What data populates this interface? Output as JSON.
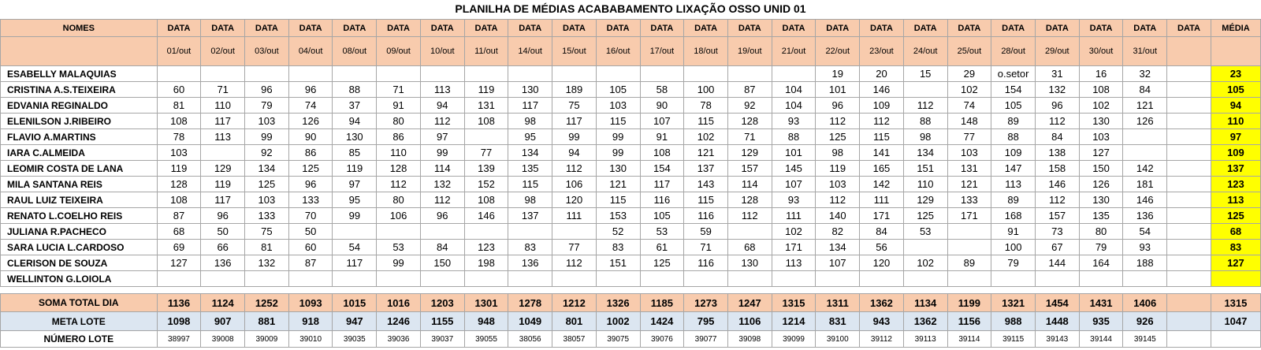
{
  "title": "PLANILHA DE MÉDIAS ACABABAMENTO LIXAÇÃO OSSO UNID 01",
  "header": {
    "nomes_label": "NOMES",
    "data_label": "DATA",
    "media_label": "MÉDIA",
    "dates": [
      "01/out",
      "02/out",
      "03/out",
      "04/out",
      "08/out",
      "09/out",
      "10/out",
      "11/out",
      "14/out",
      "15/out",
      "16/out",
      "17/out",
      "18/out",
      "19/out",
      "21/out",
      "22/out",
      "23/out",
      "24/out",
      "25/out",
      "28/out",
      "29/out",
      "30/out",
      "31/out",
      ""
    ]
  },
  "rows": [
    {
      "name": "ESABELLY MALAQUIAS",
      "values": [
        "",
        "",
        "",
        "",
        "",
        "",
        "",
        "",
        "",
        "",
        "",
        "",
        "",
        "",
        "",
        "19",
        "20",
        "15",
        "29",
        "o.setor",
        "31",
        "16",
        "32",
        ""
      ],
      "media": "23"
    },
    {
      "name": "CRISTINA A.S.TEIXEIRA",
      "values": [
        "60",
        "71",
        "96",
        "96",
        "88",
        "71",
        "113",
        "119",
        "130",
        "189",
        "105",
        "58",
        "100",
        "87",
        "104",
        "101",
        "146",
        "",
        "102",
        "154",
        "132",
        "108",
        "84",
        ""
      ],
      "media": "105"
    },
    {
      "name": "EDVANIA REGINALDO",
      "values": [
        "81",
        "110",
        "79",
        "74",
        "37",
        "91",
        "94",
        "131",
        "117",
        "75",
        "103",
        "90",
        "78",
        "92",
        "104",
        "96",
        "109",
        "112",
        "74",
        "105",
        "96",
        "102",
        "121",
        ""
      ],
      "media": "94"
    },
    {
      "name": "ELENILSON J.RIBEIRO",
      "values": [
        "108",
        "117",
        "103",
        "126",
        "94",
        "80",
        "112",
        "108",
        "98",
        "117",
        "115",
        "107",
        "115",
        "128",
        "93",
        "112",
        "112",
        "88",
        "148",
        "89",
        "112",
        "130",
        "126",
        ""
      ],
      "media": "110"
    },
    {
      "name": "FLAVIO A.MARTINS",
      "values": [
        "78",
        "113",
        "99",
        "90",
        "130",
        "86",
        "97",
        "",
        "95",
        "99",
        "99",
        "91",
        "102",
        "71",
        "88",
        "125",
        "115",
        "98",
        "77",
        "88",
        "84",
        "103",
        "",
        ""
      ],
      "media": "97"
    },
    {
      "name": "IARA C.ALMEIDA",
      "values": [
        "103",
        "",
        "92",
        "86",
        "85",
        "110",
        "99",
        "77",
        "134",
        "94",
        "99",
        "108",
        "121",
        "129",
        "101",
        "98",
        "141",
        "134",
        "103",
        "109",
        "138",
        "127",
        "",
        ""
      ],
      "media": "109"
    },
    {
      "name": "LEOMIR COSTA DE LANA",
      "values": [
        "119",
        "129",
        "134",
        "125",
        "119",
        "128",
        "114",
        "139",
        "135",
        "112",
        "130",
        "154",
        "137",
        "157",
        "145",
        "119",
        "165",
        "151",
        "131",
        "147",
        "158",
        "150",
        "142",
        ""
      ],
      "media": "137"
    },
    {
      "name": "MILA SANTANA REIS",
      "values": [
        "128",
        "119",
        "125",
        "96",
        "97",
        "112",
        "132",
        "152",
        "115",
        "106",
        "121",
        "117",
        "143",
        "114",
        "107",
        "103",
        "142",
        "110",
        "121",
        "113",
        "146",
        "126",
        "181",
        ""
      ],
      "media": "123"
    },
    {
      "name": "RAUL LUIZ TEIXEIRA",
      "values": [
        "108",
        "117",
        "103",
        "133",
        "95",
        "80",
        "112",
        "108",
        "98",
        "120",
        "115",
        "116",
        "115",
        "128",
        "93",
        "112",
        "111",
        "129",
        "133",
        "89",
        "112",
        "130",
        "146",
        ""
      ],
      "media": "113"
    },
    {
      "name": "RENATO L.COELHO REIS",
      "values": [
        "87",
        "96",
        "133",
        "70",
        "99",
        "106",
        "96",
        "146",
        "137",
        "111",
        "153",
        "105",
        "116",
        "112",
        "111",
        "140",
        "171",
        "125",
        "171",
        "168",
        "157",
        "135",
        "136",
        ""
      ],
      "media": "125"
    },
    {
      "name": "JULIANA R.PACHECO",
      "values": [
        "68",
        "50",
        "75",
        "50",
        "",
        "",
        "",
        "",
        "",
        "",
        "52",
        "53",
        "59",
        "",
        "102",
        "82",
        "84",
        "53",
        "",
        "91",
        "73",
        "80",
        "54",
        ""
      ],
      "media": "68"
    },
    {
      "name": "SARA LUCIA L.CARDOSO",
      "values": [
        "69",
        "66",
        "81",
        "60",
        "54",
        "53",
        "84",
        "123",
        "83",
        "77",
        "83",
        "61",
        "71",
        "68",
        "171",
        "134",
        "56",
        "",
        "",
        "100",
        "67",
        "79",
        "93",
        ""
      ],
      "media": "83"
    },
    {
      "name": "CLERISON DE SOUZA",
      "values": [
        "127",
        "136",
        "132",
        "87",
        "117",
        "99",
        "150",
        "198",
        "136",
        "112",
        "151",
        "125",
        "116",
        "130",
        "113",
        "107",
        "120",
        "102",
        "89",
        "79",
        "144",
        "164",
        "188",
        ""
      ],
      "media": "127"
    },
    {
      "name": "WELLINTON G.LOIOLA",
      "values": [
        "",
        "",
        "",
        "",
        "",
        "",
        "",
        "",
        "",
        "",
        "",
        "",
        "",
        "",
        "",
        "",
        "",
        "",
        "",
        "",
        "",
        "",
        "",
        ""
      ],
      "media": ""
    }
  ],
  "soma": {
    "label": "SOMA TOTAL DIA",
    "values": [
      "1136",
      "1124",
      "1252",
      "1093",
      "1015",
      "1016",
      "1203",
      "1301",
      "1278",
      "1212",
      "1326",
      "1185",
      "1273",
      "1247",
      "1315",
      "1311",
      "1362",
      "1134",
      "1199",
      "1321",
      "1454",
      "1431",
      "1406",
      ""
    ],
    "media": "1315"
  },
  "meta": {
    "label": "META LOTE",
    "values": [
      "1098",
      "907",
      "881",
      "918",
      "947",
      "1246",
      "1155",
      "948",
      "1049",
      "801",
      "1002",
      "1424",
      "795",
      "1106",
      "1214",
      "831",
      "943",
      "1362",
      "1156",
      "988",
      "1448",
      "935",
      "926",
      ""
    ],
    "media": "1047"
  },
  "numero": {
    "label": "NÚMERO LOTE",
    "values": [
      "38997",
      "39008",
      "39009",
      "39010",
      "39035",
      "39036",
      "39037",
      "39055",
      "38056",
      "38057",
      "39075",
      "39076",
      "39077",
      "39098",
      "39099",
      "39100",
      "39112",
      "39113",
      "39114",
      "39115",
      "39143",
      "39144",
      "39145",
      ""
    ],
    "media": ""
  },
  "colors": {
    "header_bg": "#f8cbad",
    "meta_bg": "#dce6f1",
    "media_bg": "#ffff00",
    "grid_line": "#a6a6a6"
  }
}
